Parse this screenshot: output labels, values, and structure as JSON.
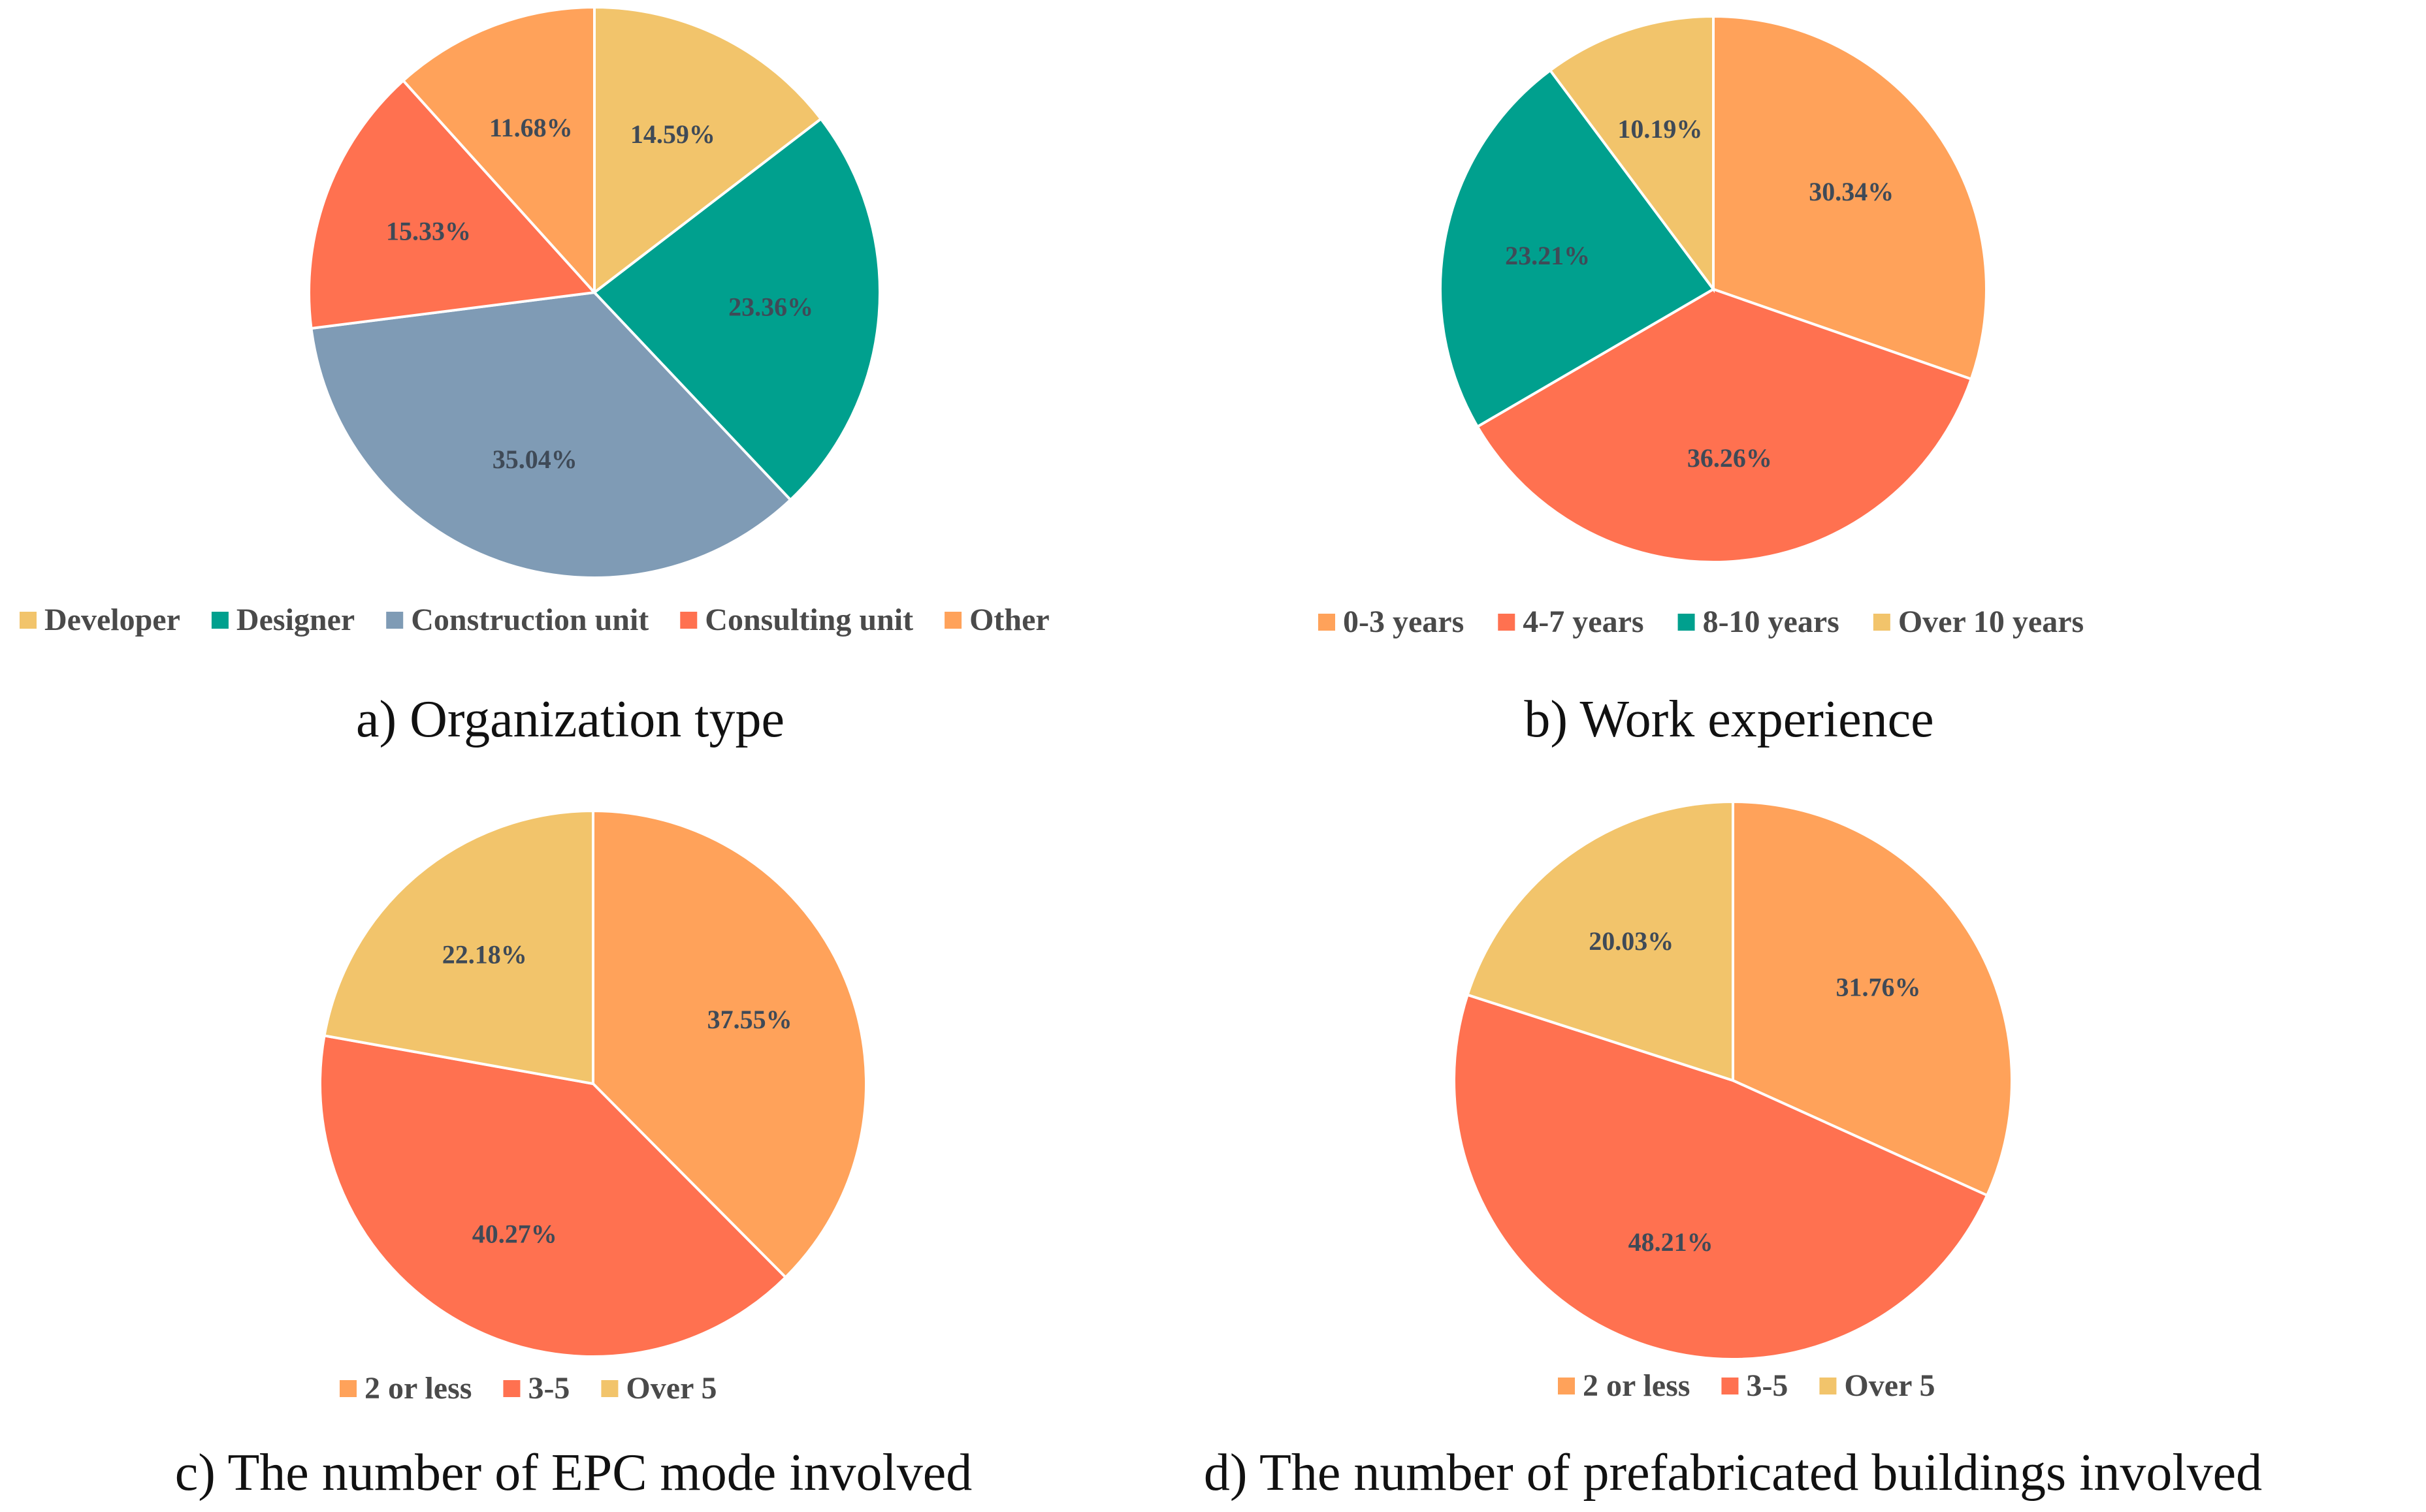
{
  "chart_data": [
    {
      "id": "a",
      "type": "pie",
      "title": "a) Organization type",
      "slices": [
        {
          "name": "Developer",
          "value": 14.59,
          "label": "14.59%",
          "color": "#f2c46b"
        },
        {
          "name": "Designer",
          "value": 23.36,
          "label": "23.36%",
          "color": "#00a08e"
        },
        {
          "name": "Construction unit",
          "value": 35.04,
          "label": "35.04%",
          "color": "#7f9bb5"
        },
        {
          "name": "Consulting unit",
          "value": 15.33,
          "label": "15.33%",
          "color": "#ff7150"
        },
        {
          "name": "Other",
          "value": 11.68,
          "label": "11.68%",
          "color": "#ffa25a"
        }
      ]
    },
    {
      "id": "b",
      "type": "pie",
      "title": "b) Work experience",
      "slices": [
        {
          "name": "0-3 years",
          "value": 30.34,
          "label": "30.34%",
          "color": "#ffa25a"
        },
        {
          "name": "4-7 years",
          "value": 36.26,
          "label": "36.26%",
          "color": "#ff7150"
        },
        {
          "name": "8-10 years",
          "value": 23.21,
          "label": "23.21%",
          "color": "#00a08e"
        },
        {
          "name": "Over 10 years",
          "value": 10.19,
          "label": "10.19%",
          "color": "#f2c46b"
        }
      ]
    },
    {
      "id": "c",
      "type": "pie",
      "title": "c) The number of EPC mode involved",
      "slices": [
        {
          "name": "2 or less",
          "value": 37.55,
          "label": "37.55%",
          "color": "#ffa25a"
        },
        {
          "name": "3-5",
          "value": 40.27,
          "label": "40.27%",
          "color": "#ff7150"
        },
        {
          "name": "Over 5",
          "value": 22.18,
          "label": "22.18%",
          "color": "#f2c46b"
        }
      ]
    },
    {
      "id": "d",
      "type": "pie",
      "title": "d) The number of prefabricated buildings involved",
      "slices": [
        {
          "name": "2 or less",
          "value": 31.76,
          "label": "31.76%",
          "color": "#ffa25a"
        },
        {
          "name": "3-5",
          "value": 48.21,
          "label": "48.21%",
          "color": "#ff7150"
        },
        {
          "name": "Over 5",
          "value": 20.03,
          "label": "20.03%",
          "color": "#f2c46b"
        }
      ]
    }
  ]
}
